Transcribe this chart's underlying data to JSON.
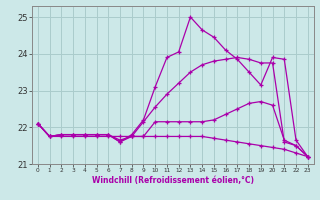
{
  "xlabel": "Windchill (Refroidissement éolien,°C)",
  "background_color": "#cce8e8",
  "grid_color": "#aacccc",
  "line_color": "#aa00aa",
  "xlim": [
    -0.5,
    23.5
  ],
  "ylim": [
    21.0,
    25.3
  ],
  "yticks": [
    21,
    22,
    23,
    24,
    25
  ],
  "xticks": [
    0,
    1,
    2,
    3,
    4,
    5,
    6,
    7,
    8,
    9,
    10,
    11,
    12,
    13,
    14,
    15,
    16,
    17,
    18,
    19,
    20,
    21,
    22,
    23
  ],
  "series": [
    [
      22.1,
      21.75,
      21.8,
      21.8,
      21.8,
      21.8,
      21.8,
      21.65,
      21.75,
      21.75,
      22.15,
      22.15,
      22.15,
      22.15,
      22.15,
      22.2,
      22.35,
      22.5,
      22.65,
      22.7,
      22.6,
      21.65,
      21.5,
      21.2
    ],
    [
      22.1,
      21.75,
      21.75,
      21.75,
      21.75,
      21.75,
      21.75,
      21.75,
      21.75,
      21.75,
      21.75,
      21.75,
      21.75,
      21.75,
      21.75,
      21.7,
      21.65,
      21.6,
      21.55,
      21.5,
      21.45,
      21.4,
      21.3,
      21.2
    ],
    [
      22.1,
      21.75,
      21.8,
      21.8,
      21.8,
      21.8,
      21.8,
      21.6,
      21.8,
      22.2,
      23.1,
      23.9,
      24.05,
      25.0,
      24.65,
      24.45,
      24.1,
      23.85,
      23.5,
      23.15,
      23.9,
      23.85,
      21.65,
      21.2
    ],
    [
      22.1,
      21.75,
      21.8,
      21.8,
      21.8,
      21.8,
      21.8,
      21.6,
      21.75,
      22.15,
      22.55,
      22.9,
      23.2,
      23.5,
      23.7,
      23.8,
      23.85,
      23.9,
      23.85,
      23.75,
      23.75,
      21.6,
      21.5,
      21.2
    ]
  ]
}
